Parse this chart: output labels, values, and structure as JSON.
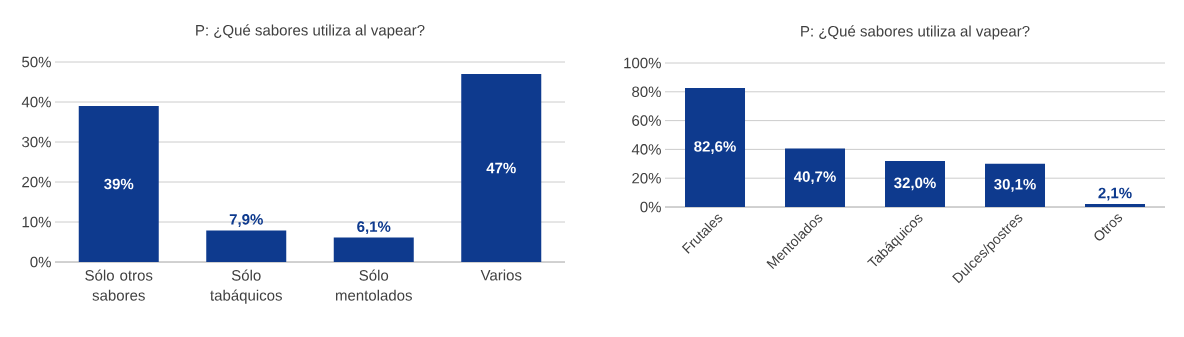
{
  "chart_data": [
    {
      "type": "bar",
      "title": "P: ¿Qué sabores utiliza al vapear?",
      "categories": [
        "Sólo otros sabores",
        "Sólo tabáquicos",
        "Sólo mentolados",
        "Varios"
      ],
      "values": [
        39,
        7.9,
        6.1,
        47
      ],
      "value_labels": [
        "39%",
        "7,9%",
        "6,1%",
        "47%"
      ],
      "color": "#0e3a8e",
      "ylim": [
        0,
        50
      ],
      "yticks": [
        {
          "value": 0,
          "label": "0%"
        },
        {
          "value": 10,
          "label": "10%"
        },
        {
          "value": 20,
          "label": "20%"
        },
        {
          "value": 30,
          "label": "30%"
        },
        {
          "value": 40,
          "label": "40%"
        },
        {
          "value": 50,
          "label": "50%"
        }
      ],
      "grid": "y"
    },
    {
      "type": "bar",
      "title": "P: ¿Qué sabores utiliza al vapear?",
      "categories": [
        "Frutales",
        "Mentolados",
        "Tabáquicos",
        "Dulces/postres",
        "Otros"
      ],
      "values": [
        82.6,
        40.7,
        32.0,
        30.1,
        2.1
      ],
      "value_labels": [
        "82,6%",
        "40,7%",
        "32,0%",
        "30,1%",
        "2,1%"
      ],
      "color": "#0e3a8e",
      "ylim": [
        0,
        100
      ],
      "yticks": [
        {
          "value": 0,
          "label": "0%"
        },
        {
          "value": 20,
          "label": "20%"
        },
        {
          "value": 40,
          "label": "40%"
        },
        {
          "value": 60,
          "label": "60%"
        },
        {
          "value": 80,
          "label": "80%"
        },
        {
          "value": 100,
          "label": "100%"
        }
      ],
      "grid": "y"
    }
  ]
}
